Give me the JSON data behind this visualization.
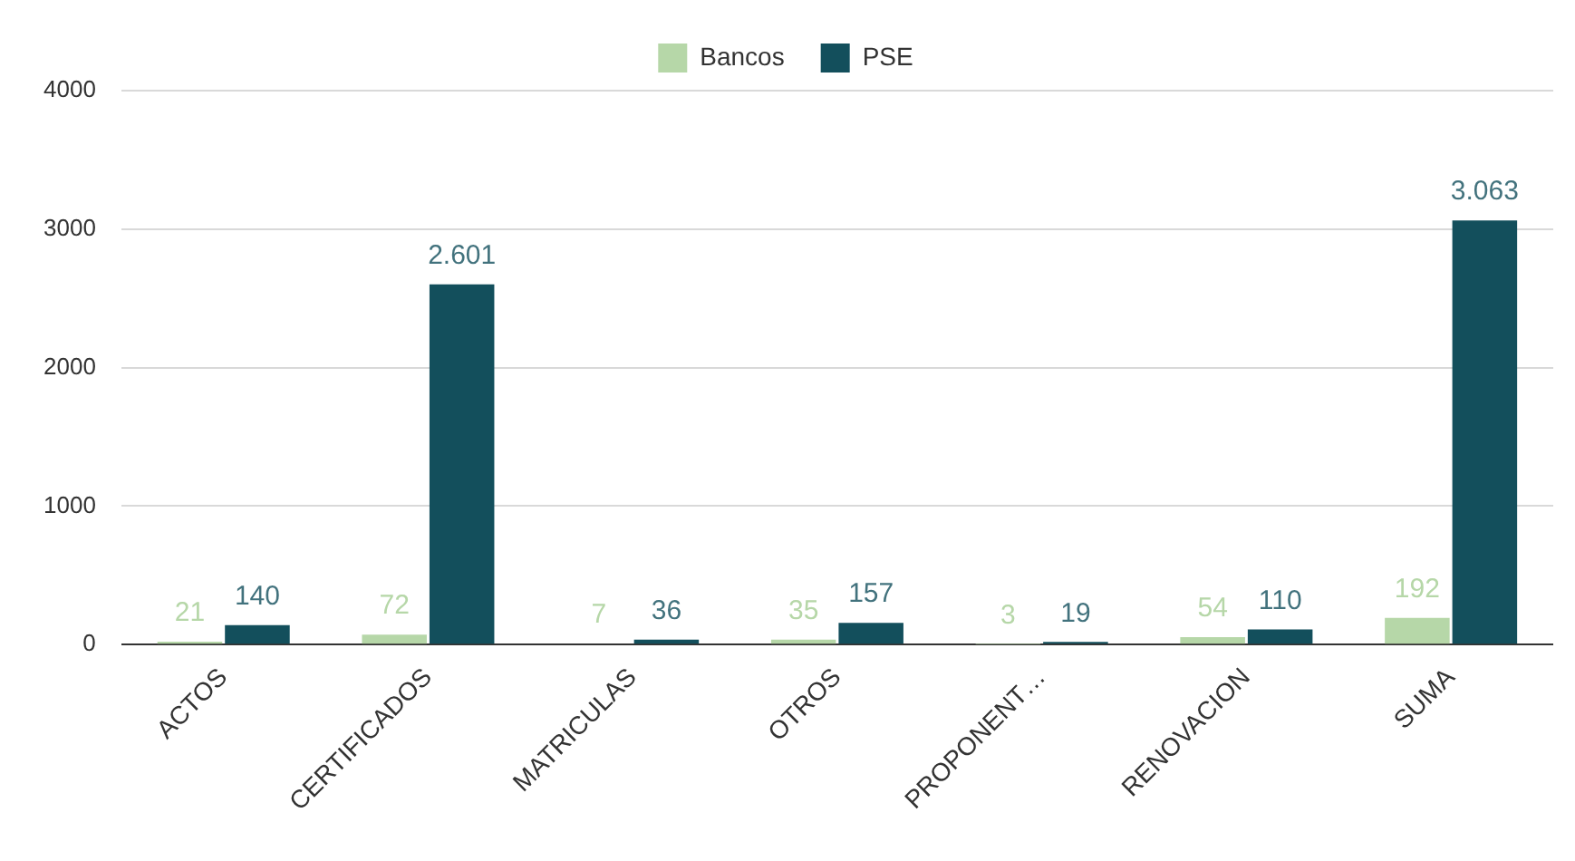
{
  "chart_data": {
    "type": "bar",
    "categories": [
      "ACTOS",
      "CERTIFICADOS",
      "MATRICULAS",
      "OTROS",
      "PROPONENT…",
      "RENOVACION",
      "SUMA"
    ],
    "series": [
      {
        "name": "Bancos",
        "color": "#b6d7a8",
        "values": [
          21,
          72,
          7,
          35,
          3,
          54,
          192
        ],
        "value_labels": [
          "21",
          "72",
          "7",
          "35",
          "3",
          "54",
          "192"
        ]
      },
      {
        "name": "PSE",
        "color": "#134f5c",
        "values": [
          140,
          2601,
          36,
          157,
          19,
          110,
          3063
        ],
        "value_labels": [
          "140",
          "2.601",
          "36",
          "157",
          "19",
          "110",
          "3.063"
        ]
      }
    ],
    "ylim": [
      0,
      4000
    ],
    "yticks": [
      0,
      1000,
      2000,
      3000,
      4000
    ],
    "grid": "y",
    "legend": "top"
  }
}
